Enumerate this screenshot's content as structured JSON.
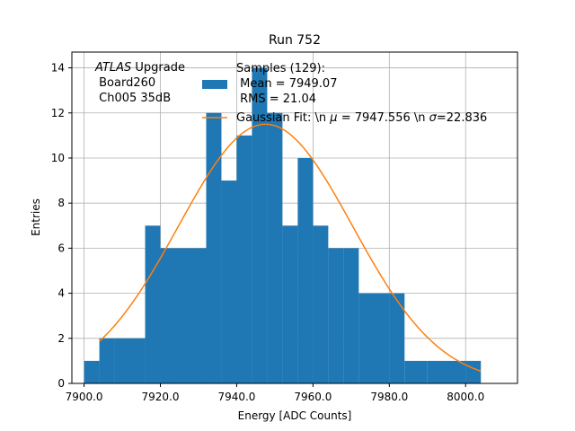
{
  "chart_data": {
    "type": "bar",
    "title": "Run 752",
    "xlabel": "Energy [ADC Counts]",
    "ylabel": "Entries",
    "xlim": [
      7896.8,
      8013.6
    ],
    "ylim": [
      0,
      14.7
    ],
    "grid": true,
    "x_ticks": [
      7900.0,
      7920.0,
      7940.0,
      7960.0,
      7980.0,
      8000.0
    ],
    "x_tick_labels": [
      "7900.0",
      "7920.0",
      "7940.0",
      "7960.0",
      "7980.0",
      "8000.0"
    ],
    "y_ticks": [
      0,
      2,
      4,
      6,
      8,
      10,
      12,
      14
    ],
    "y_tick_labels": [
      "0",
      "2",
      "4",
      "6",
      "8",
      "10",
      "12",
      "14"
    ],
    "annotation": {
      "atlas": "ATLAS",
      "upgrade": " Upgrade",
      "board": " Board260",
      "channel": " Ch005 35dB"
    },
    "histogram": {
      "bin_edges": [
        7900,
        7904,
        7908,
        7916,
        7920,
        7924,
        7932,
        7936,
        7940,
        7944,
        7948,
        7952,
        7956,
        7960,
        7964,
        7968,
        7972,
        7980,
        7984,
        7990,
        8000,
        8004
      ],
      "counts": [
        1,
        2,
        2,
        7,
        6,
        6,
        12,
        9,
        11,
        14,
        12,
        7,
        10,
        7,
        6,
        6,
        4,
        4,
        1,
        1,
        1
      ],
      "color": "#1f77b4"
    },
    "series": [
      {
        "name": "Samples (129):",
        "legend_lines": [
          "Samples (129):",
          " Mean = 7949.07",
          " RMS = 21.04"
        ],
        "kind": "histogram",
        "color": "#1f77b4"
      },
      {
        "name": "Gaussian Fit: \\n μ = 7947.556 \\n σ=22.836",
        "legend_parts": {
          "prefix": "Gaussian Fit: \\n ",
          "mu_symbol": "μ",
          "mu_text": " = 7947.556 \\n ",
          "sigma_symbol": "σ",
          "sigma_text": "=22.836"
        },
        "kind": "line",
        "color": "#ff7f0e",
        "mu": 7947.556,
        "sigma": 22.836,
        "amplitude": 11.5,
        "x_range": [
          7904,
          8004
        ]
      }
    ],
    "legend_position": "top-center"
  }
}
